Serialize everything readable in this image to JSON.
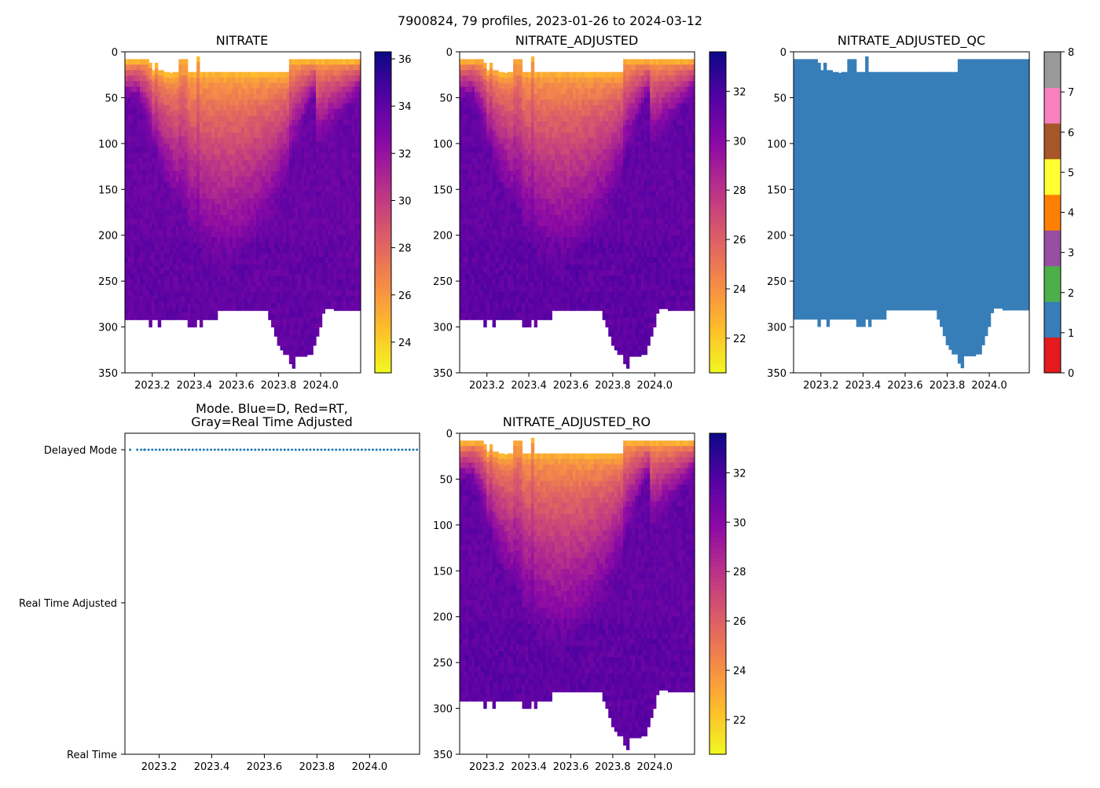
{
  "figure_title": "7900824, 79 profiles, 2023-01-26 to 2024-03-12",
  "chart_data": [
    {
      "id": "nitrate",
      "type": "heatmap",
      "title": "NITRATE",
      "xlabel": "",
      "ylabel": "",
      "xlim": [
        2023.07,
        2024.19
      ],
      "ylim": [
        350,
        0
      ],
      "x_ticks": [
        "2023.2",
        "2023.4",
        "2023.6",
        "2023.8",
        "2024.0"
      ],
      "y_ticks": [
        "0",
        "50",
        "100",
        "150",
        "200",
        "250",
        "300",
        "350"
      ],
      "colormap": "plasma_r",
      "colorbar": {
        "range": [
          22.7,
          36.3
        ],
        "ticks": [
          "24",
          "26",
          "28",
          "30",
          "32",
          "34",
          "36"
        ]
      },
      "deep_value": 33.6,
      "surface_value": 25.0
    },
    {
      "id": "nitrate_adjusted",
      "type": "heatmap",
      "title": "NITRATE_ADJUSTED",
      "xlabel": "",
      "ylabel": "",
      "xlim": [
        2023.07,
        2024.19
      ],
      "ylim": [
        350,
        0
      ],
      "x_ticks": [
        "2023.2",
        "2023.4",
        "2023.6",
        "2023.8",
        "2024.0"
      ],
      "y_ticks": [
        "0",
        "50",
        "100",
        "150",
        "200",
        "250",
        "300",
        "350"
      ],
      "colormap": "plasma_r",
      "colorbar": {
        "range": [
          20.6,
          33.6
        ],
        "ticks": [
          "22",
          "24",
          "26",
          "28",
          "30",
          "32"
        ]
      },
      "deep_value": 31.2,
      "surface_value": 23.0
    },
    {
      "id": "nitrate_adjusted_qc",
      "type": "heatmap",
      "title": "NITRATE_ADJUSTED_QC",
      "xlabel": "",
      "ylabel": "",
      "xlim": [
        2023.07,
        2024.19
      ],
      "ylim": [
        350,
        0
      ],
      "x_ticks": [
        "2023.2",
        "2023.4",
        "2023.6",
        "2023.8",
        "2024.0"
      ],
      "y_ticks": [
        "0",
        "50",
        "100",
        "150",
        "200",
        "250",
        "300",
        "350"
      ],
      "colormap": "qc_discrete",
      "fill_value": 1,
      "colorbar": {
        "range": [
          0,
          8
        ],
        "ticks": [
          "0",
          "1",
          "2",
          "3",
          "4",
          "5",
          "6",
          "7",
          "8"
        ],
        "classes": [
          "#e41a1c",
          "#377eb8",
          "#4daf4a",
          "#984ea3",
          "#ff7f00",
          "#ffff33",
          "#a65628",
          "#f781bf",
          "#999999"
        ]
      }
    },
    {
      "id": "mode",
      "type": "scatter",
      "title": "Mode. Blue=D, Red=RT,",
      "title_line2": "Gray=Real Time Adjusted",
      "xlabel": "",
      "ylabel": "",
      "xlim": [
        2023.07,
        2024.19
      ],
      "ylim": [
        0,
        2
      ],
      "x_ticks": [
        "2023.2",
        "2023.4",
        "2023.6",
        "2023.8",
        "2024.0"
      ],
      "y_tick_labels": [
        "Real Time",
        "Real Time Adjusted",
        "Delayed Mode"
      ],
      "marker_color": "#1f77b4",
      "series": [
        {
          "name": "Delayed Mode",
          "y": 2,
          "count": 79
        }
      ]
    },
    {
      "id": "nitrate_adjusted_ro",
      "type": "heatmap",
      "title": "NITRATE_ADJUSTED_RO",
      "xlabel": "",
      "ylabel": "",
      "xlim": [
        2023.07,
        2024.19
      ],
      "ylim": [
        350,
        0
      ],
      "x_ticks": [
        "2023.2",
        "2023.4",
        "2023.6",
        "2023.8",
        "2024.0"
      ],
      "y_ticks": [
        "0",
        "50",
        "100",
        "150",
        "200",
        "250",
        "300",
        "350"
      ],
      "colormap": "plasma_r",
      "colorbar": {
        "range": [
          20.6,
          33.6
        ],
        "ticks": [
          "22",
          "24",
          "26",
          "28",
          "30",
          "32"
        ]
      },
      "deep_value": 31.2,
      "surface_value": 23.0
    }
  ],
  "profiles": {
    "time_range": [
      "2023-01-26",
      "2024-03-12"
    ],
    "count": 79,
    "top_depth": [
      8,
      8,
      8,
      8,
      8,
      8,
      8,
      8,
      12,
      20,
      12,
      20,
      20,
      22,
      22,
      23,
      22,
      22,
      8,
      8,
      8,
      22,
      22,
      22,
      5,
      22,
      22,
      22,
      22,
      22,
      22,
      22,
      22,
      22,
      22,
      22,
      22,
      22,
      22,
      22,
      22,
      22,
      22,
      22,
      22,
      22,
      22,
      22,
      22,
      22,
      22,
      22,
      22,
      22,
      22,
      8,
      8,
      8,
      8,
      8,
      8,
      8,
      8,
      8,
      8,
      8,
      8,
      8,
      8,
      8,
      8,
      8,
      8,
      8,
      8,
      8,
      8,
      8,
      8
    ],
    "bottom_depth": [
      292,
      292,
      292,
      292,
      292,
      292,
      292,
      292,
      300,
      292,
      292,
      300,
      292,
      292,
      292,
      292,
      292,
      292,
      292,
      292,
      292,
      300,
      300,
      300,
      292,
      300,
      292,
      292,
      292,
      292,
      292,
      282,
      282,
      282,
      282,
      282,
      282,
      282,
      282,
      282,
      282,
      282,
      282,
      282,
      282,
      282,
      282,
      282,
      292,
      300,
      310,
      320,
      325,
      330,
      330,
      340,
      345,
      332,
      332,
      332,
      332,
      330,
      330,
      320,
      310,
      300,
      285,
      280,
      280,
      280,
      282,
      282,
      282,
      282,
      282,
      282,
      282,
      282,
      282
    ]
  }
}
